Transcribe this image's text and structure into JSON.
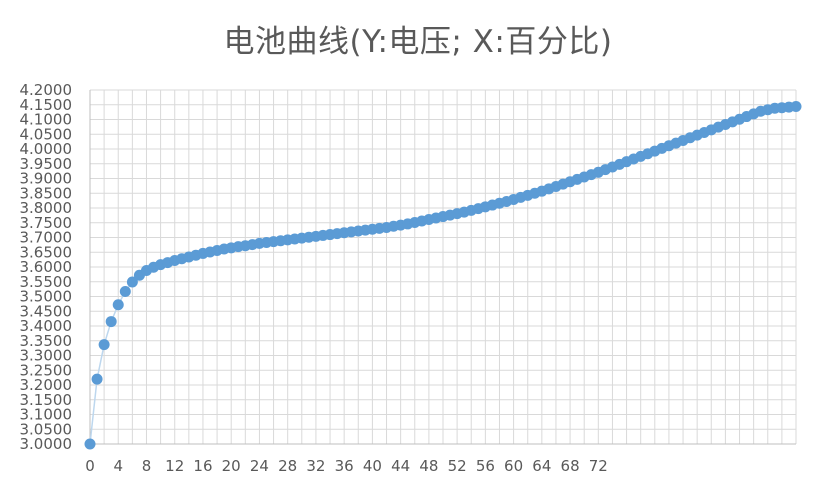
{
  "chart_data": {
    "type": "scatter",
    "title": "电池曲线(Y:电压; X:百分比)",
    "xlabel": "",
    "ylabel": "",
    "xlim": [
      0,
      100
    ],
    "ylim": [
      3.0,
      4.2
    ],
    "x_ticks": [
      0,
      4,
      8,
      12,
      16,
      20,
      24,
      28,
      32,
      36,
      40,
      44,
      48,
      52,
      56,
      60,
      64,
      68,
      72
    ],
    "y_ticks": [
      "3.0000",
      "3.0500",
      "3.1000",
      "3.1500",
      "3.2000",
      "3.2500",
      "3.3000",
      "3.3500",
      "3.4000",
      "3.4500",
      "3.5000",
      "3.5500",
      "3.6000",
      "3.6500",
      "3.7000",
      "3.7500",
      "3.8000",
      "3.8500",
      "3.9000",
      "3.9500",
      "4.0000",
      "4.0500",
      "4.1000",
      "4.1500",
      "4.2000"
    ],
    "grid": true,
    "legend": "none",
    "series": [
      {
        "color": "#5B9BD5",
        "line_color": "#BDD7EE",
        "x": [
          0,
          1,
          2,
          3,
          4,
          5,
          6,
          7,
          8,
          9,
          10,
          11,
          12,
          13,
          14,
          15,
          16,
          17,
          18,
          19,
          20,
          21,
          22,
          23,
          24,
          25,
          26,
          27,
          28,
          29,
          30,
          31,
          32,
          33,
          34,
          35,
          36,
          37,
          38,
          39,
          40,
          41,
          42,
          43,
          44,
          45,
          46,
          47,
          48,
          49,
          50,
          51,
          52,
          53,
          54,
          55,
          56,
          57,
          58,
          59,
          60,
          61,
          62,
          63,
          64,
          65,
          66,
          67,
          68,
          69,
          70,
          71,
          72,
          73,
          74,
          75,
          76,
          77,
          78,
          79,
          80,
          81,
          82,
          83,
          84,
          85,
          86,
          87,
          88,
          89,
          90,
          91,
          92,
          93,
          94,
          95,
          96,
          97,
          98,
          99,
          100
        ],
        "y": [
          3.0,
          3.22,
          3.337,
          3.415,
          3.472,
          3.517,
          3.549,
          3.572,
          3.588,
          3.599,
          3.608,
          3.615,
          3.622,
          3.628,
          3.634,
          3.64,
          3.646,
          3.651,
          3.656,
          3.661,
          3.665,
          3.669,
          3.672,
          3.676,
          3.68,
          3.683,
          3.686,
          3.689,
          3.692,
          3.695,
          3.698,
          3.701,
          3.704,
          3.707,
          3.71,
          3.713,
          3.716,
          3.719,
          3.722,
          3.725,
          3.728,
          3.731,
          3.734,
          3.738,
          3.742,
          3.746,
          3.751,
          3.756,
          3.761,
          3.766,
          3.771,
          3.776,
          3.781,
          3.786,
          3.792,
          3.798,
          3.804,
          3.81,
          3.816,
          3.822,
          3.829,
          3.836,
          3.843,
          3.85,
          3.857,
          3.865,
          3.873,
          3.881,
          3.889,
          3.897,
          3.905,
          3.913,
          3.921,
          3.93,
          3.939,
          3.948,
          3.957,
          3.966,
          3.975,
          3.984,
          3.993,
          4.002,
          4.011,
          4.02,
          4.029,
          4.038,
          4.047,
          4.056,
          4.065,
          4.074,
          4.083,
          4.092,
          4.101,
          4.11,
          4.119,
          4.128,
          4.133,
          4.138,
          4.14,
          4.142,
          4.144
        ]
      }
    ]
  }
}
